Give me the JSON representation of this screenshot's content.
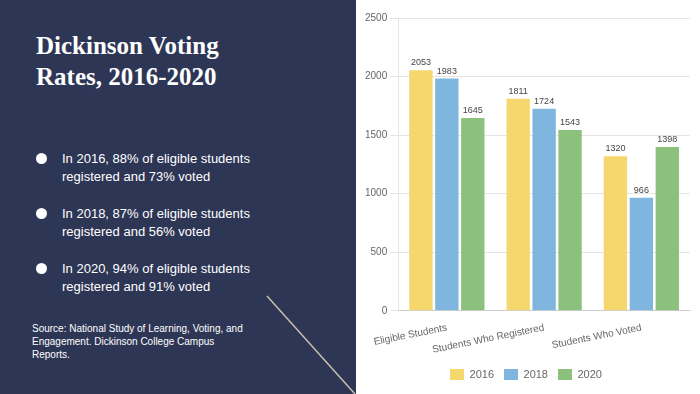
{
  "chart_data": {
    "type": "bar",
    "title": "Dickinson Voting\nRates, 2016-2020",
    "annotations": [
      "In 2016, 88% of eligible students\nregistered and 73% voted",
      "In 2018, 87% of eligible students\nregistered and 56% voted",
      "In 2020, 94% of eligible students\nregistered and 91% voted",
      "Source: National Study of Learning, Voting, and\nEngagement. Dickinson College Campus\nReports."
    ],
    "categories": [
      "Eligible Students",
      "Students Who Registered",
      "Students Who Voted"
    ],
    "series": [
      {
        "name": "2016",
        "color": "#F5D76E",
        "values": [
          2053,
          1811,
          1320
        ]
      },
      {
        "name": "2018",
        "color": "#7EB6E0",
        "values": [
          1983,
          1724,
          966
        ]
      },
      {
        "name": "2020",
        "color": "#8CC07D",
        "values": [
          1645,
          1543,
          1398
        ]
      }
    ],
    "ylim": [
      0,
      2500
    ],
    "yticks": [
      0,
      500,
      1000,
      1500,
      2000,
      2500
    ],
    "grid": true,
    "legend": "bottom",
    "data_labels": true
  }
}
